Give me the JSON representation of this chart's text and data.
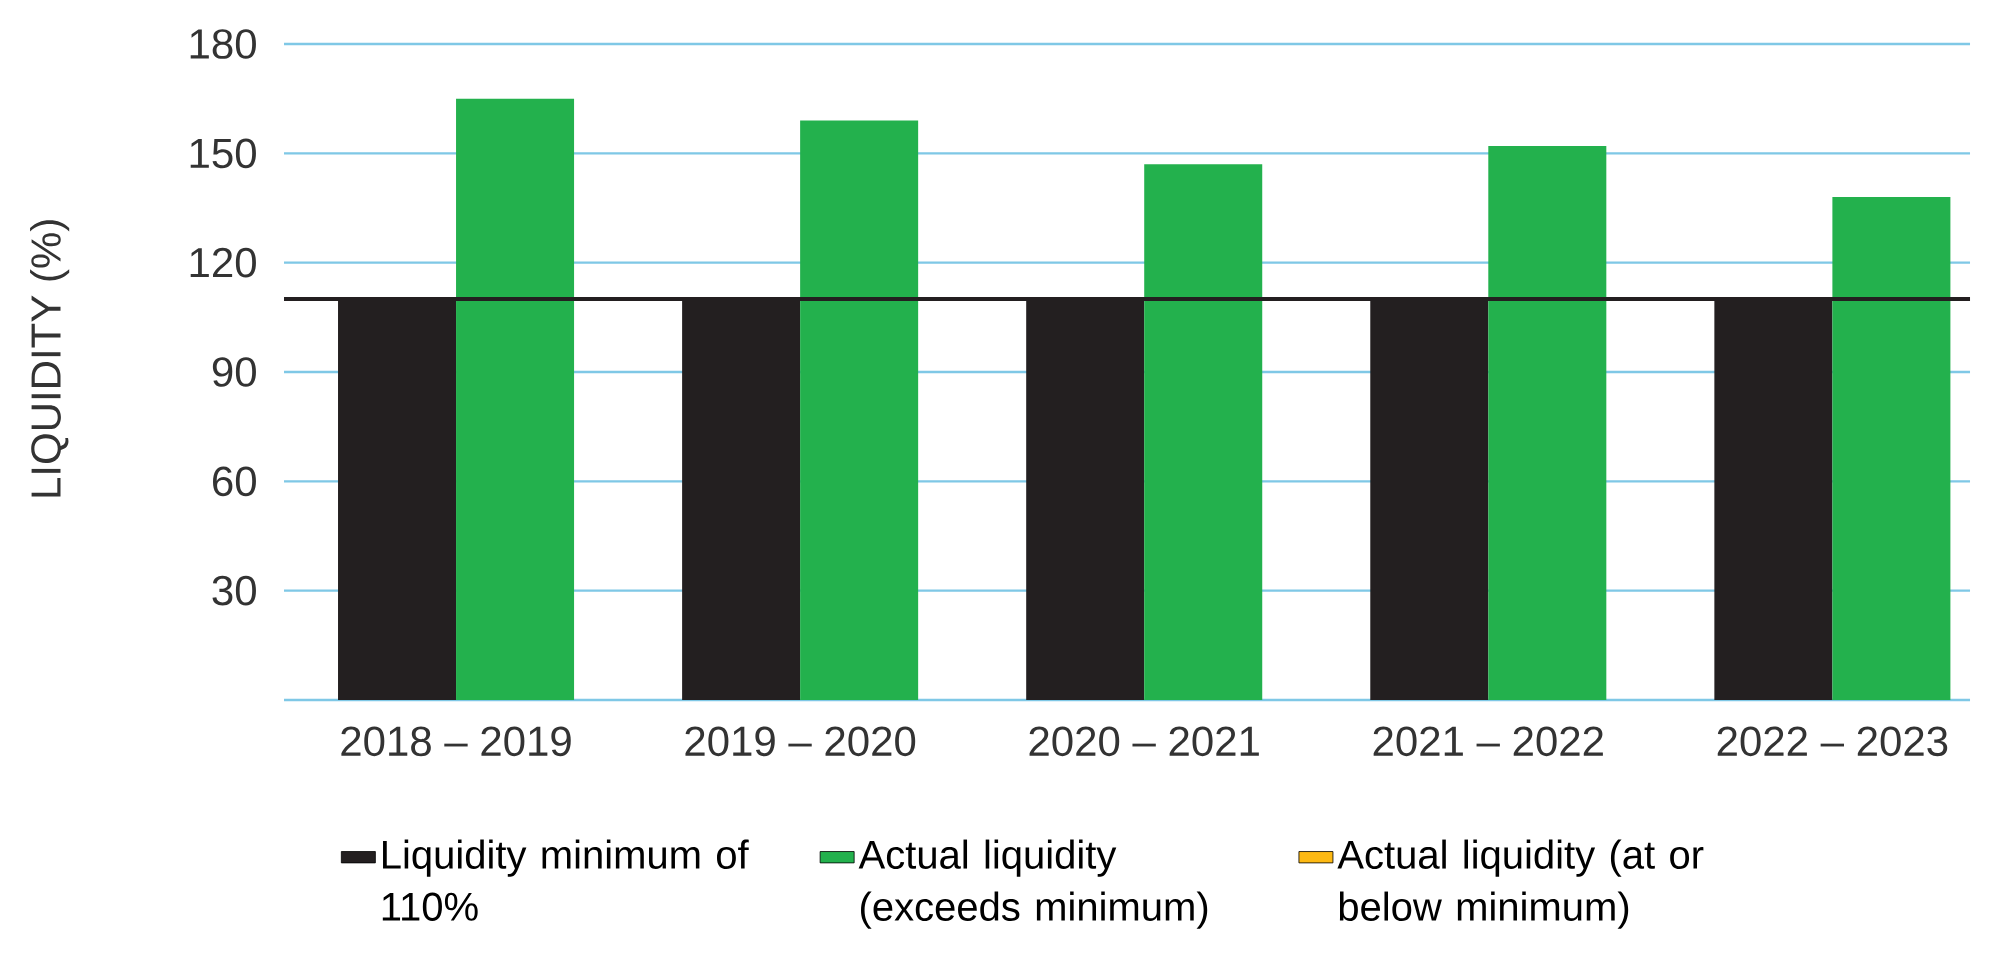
{
  "chart_data": {
    "type": "bar",
    "ylabel": "LIQUIDITY (%)",
    "categories": [
      "2018 – 2019",
      "2019 – 2020",
      "2020 – 2021",
      "2021 – 2022",
      "2022 – 2023"
    ],
    "series": [
      {
        "name": "Liquidity minimum of 110%",
        "color": "#231f20",
        "values": [
          110,
          110,
          110,
          110,
          110
        ]
      },
      {
        "name": "Actual liquidity (exceeds minimum)",
        "color": "#23b14d",
        "values": [
          165,
          159,
          147,
          152,
          138
        ]
      },
      {
        "name": "Actual liquidity (at or below minimum)",
        "color": "#fdb913",
        "values": [
          null,
          null,
          null,
          null,
          null
        ]
      }
    ],
    "ylim": [
      0,
      180
    ],
    "yticks": [
      {
        "value": 0,
        "label": null
      },
      30,
      60,
      90,
      120,
      150,
      180
    ],
    "ref_lines": [
      {
        "axis": "y",
        "value": 110,
        "color": "#231f20"
      }
    ],
    "grid": "y",
    "legend": "bottom"
  }
}
